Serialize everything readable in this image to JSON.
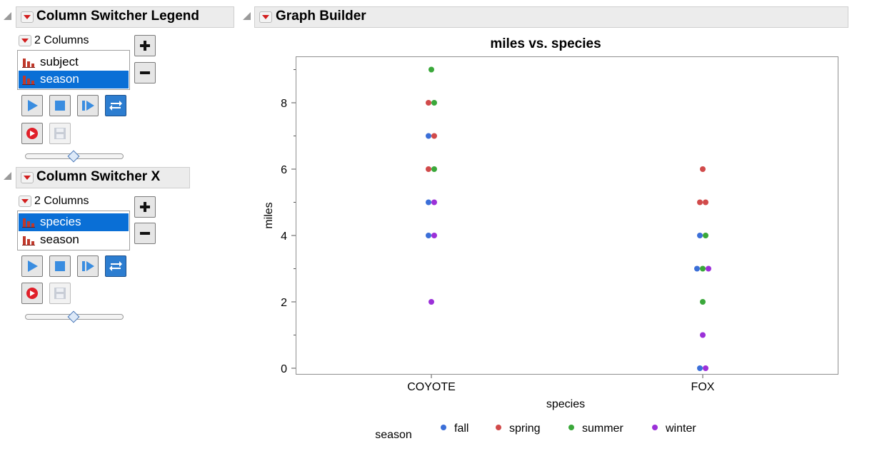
{
  "legend_panel": {
    "title": "Column Switcher Legend",
    "columns_label": "2 Columns",
    "items": [
      {
        "label": "subject",
        "selected": false
      },
      {
        "label": "season",
        "selected": true
      }
    ],
    "slider_level": 0.5
  },
  "x_panel": {
    "title": "Column Switcher X",
    "columns_label": "2 Columns",
    "items": [
      {
        "label": "species",
        "selected": true
      },
      {
        "label": "season",
        "selected": false
      }
    ],
    "slider_level": 0.5
  },
  "graph_builder": {
    "title": "Graph Builder"
  },
  "chart_data": {
    "type": "scatter",
    "title": "miles vs. species",
    "xlabel": "species",
    "ylabel": "miles",
    "categories": [
      "COYOTE",
      "FOX"
    ],
    "ylim": [
      -0.2,
      9.4
    ],
    "yticks": [
      "0",
      "2",
      "4",
      "6",
      "8"
    ],
    "legend_title": "season",
    "legend_position": "bottom",
    "series": [
      {
        "name": "fall",
        "color": "#3b6fd8",
        "points": [
          [
            "COYOTE",
            7
          ],
          [
            "COYOTE",
            5
          ],
          [
            "COYOTE",
            4
          ],
          [
            "FOX",
            4
          ],
          [
            "FOX",
            3
          ],
          [
            "FOX",
            0
          ]
        ]
      },
      {
        "name": "spring",
        "color": "#d14a4a",
        "points": [
          [
            "COYOTE",
            8
          ],
          [
            "COYOTE",
            7
          ],
          [
            "COYOTE",
            6
          ],
          [
            "FOX",
            6
          ],
          [
            "FOX",
            5
          ],
          [
            "FOX",
            5
          ]
        ]
      },
      {
        "name": "summer",
        "color": "#3aa83a",
        "points": [
          [
            "COYOTE",
            9
          ],
          [
            "COYOTE",
            8
          ],
          [
            "COYOTE",
            6
          ],
          [
            "FOX",
            4
          ],
          [
            "FOX",
            3
          ],
          [
            "FOX",
            2
          ]
        ]
      },
      {
        "name": "winter",
        "color": "#9b30d8",
        "points": [
          [
            "COYOTE",
            5
          ],
          [
            "COYOTE",
            4
          ],
          [
            "COYOTE",
            2
          ],
          [
            "FOX",
            3
          ],
          [
            "FOX",
            1
          ],
          [
            "FOX",
            0
          ]
        ]
      }
    ]
  }
}
